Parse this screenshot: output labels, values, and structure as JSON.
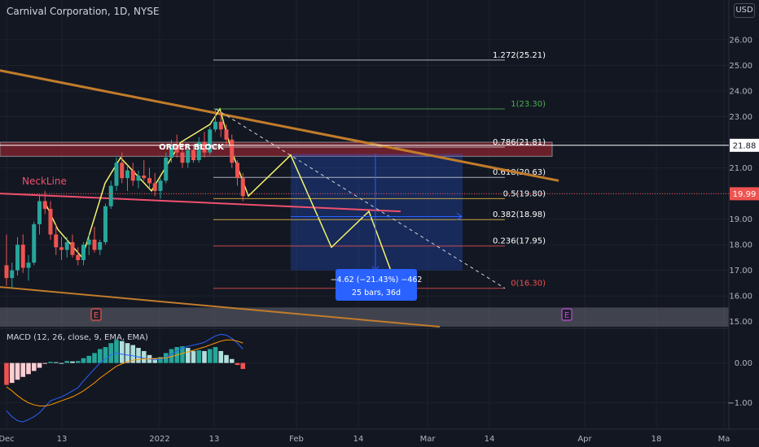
{
  "title": "Carnival Corporation, 1D, NYSE",
  "currency_button": "USD",
  "macd_title": "MACD (12, 26, close, 9, EMA, EMA)",
  "labels": {
    "neckline": "NeckLine",
    "order_block": "ORDER BLOCK",
    "earnings": "E",
    "measure_line1": "−4.62 (−21.43%) −462",
    "measure_line2": "25 bars, 36d"
  },
  "colors": {
    "background": "#131722",
    "up": "#26a69a",
    "down": "#ef5350",
    "trend": "#c27c2a",
    "pattern": "#f3f36b",
    "neckline": "#f0506e",
    "measure": "#2962ff"
  },
  "chart_data": [
    {
      "type": "candlestick",
      "title": "Carnival Corporation, 1D, NYSE",
      "x_ticks": [
        "Dec",
        "13",
        "2022",
        "13",
        "Feb",
        "14",
        "Mar",
        "14",
        "Apr",
        "18",
        "Ma"
      ],
      "y_ticks": [
        "26.00",
        "25.00",
        "24.00",
        "23.00",
        "22.00",
        "21.00",
        "20.00",
        "19.00",
        "18.00",
        "17.00",
        "16.00",
        "15.00"
      ],
      "ylim": [
        14.8,
        26.6
      ],
      "price_labels": [
        {
          "value": 21.88,
          "text": "21.88",
          "style": "white"
        },
        {
          "value": 19.99,
          "text": "19.99",
          "style": "red"
        }
      ],
      "candles": [
        [
          17.2,
          18.4,
          16.4,
          16.7
        ],
        [
          16.7,
          17.3,
          16.3,
          17.0
        ],
        [
          17.0,
          18.3,
          16.8,
          18.0
        ],
        [
          18.0,
          18.4,
          16.9,
          17.1
        ],
        [
          17.1,
          17.6,
          16.6,
          17.3
        ],
        [
          17.3,
          18.9,
          17.2,
          18.8
        ],
        [
          18.8,
          19.9,
          18.4,
          19.7
        ],
        [
          19.7,
          20.1,
          19.2,
          19.4
        ],
        [
          19.4,
          19.7,
          18.2,
          18.4
        ],
        [
          18.4,
          18.8,
          17.6,
          17.9
        ],
        [
          17.9,
          18.3,
          17.4,
          17.8
        ],
        [
          17.8,
          18.3,
          17.5,
          18.1
        ],
        [
          18.1,
          18.4,
          17.5,
          17.6
        ],
        [
          17.6,
          17.9,
          17.2,
          17.4
        ],
        [
          17.4,
          18.1,
          17.2,
          18.0
        ],
        [
          18.0,
          18.4,
          17.6,
          18.2
        ],
        [
          18.2,
          18.7,
          17.7,
          17.8
        ],
        [
          17.8,
          18.2,
          17.6,
          18.1
        ],
        [
          18.1,
          19.6,
          18.0,
          19.5
        ],
        [
          19.5,
          20.5,
          19.4,
          20.3
        ],
        [
          20.3,
          21.4,
          20.1,
          21.2
        ],
        [
          21.2,
          21.6,
          20.4,
          20.6
        ],
        [
          20.6,
          21.1,
          20.1,
          20.9
        ],
        [
          20.9,
          21.2,
          20.3,
          20.5
        ],
        [
          20.5,
          20.9,
          20.2,
          20.7
        ],
        [
          20.7,
          21.3,
          20.5,
          20.6
        ],
        [
          20.6,
          21.0,
          20.2,
          20.4
        ],
        [
          20.4,
          20.8,
          19.9,
          20.1
        ],
        [
          20.1,
          20.6,
          19.8,
          20.5
        ],
        [
          20.5,
          21.6,
          20.4,
          21.4
        ],
        [
          21.4,
          22.1,
          21.2,
          21.9
        ],
        [
          21.9,
          22.3,
          21.4,
          21.6
        ],
        [
          21.6,
          22.0,
          21.0,
          21.2
        ],
        [
          21.2,
          21.8,
          21.0,
          21.7
        ],
        [
          21.7,
          21.9,
          21.2,
          21.3
        ],
        [
          21.3,
          22.2,
          21.2,
          22.0
        ],
        [
          22.0,
          22.4,
          21.4,
          21.6
        ],
        [
          21.6,
          22.6,
          21.5,
          22.5
        ],
        [
          22.5,
          23.3,
          22.4,
          22.8
        ],
        [
          22.8,
          23.2,
          22.2,
          22.5
        ],
        [
          22.5,
          22.7,
          21.9,
          22.1
        ],
        [
          22.1,
          22.3,
          21.0,
          21.2
        ],
        [
          21.2,
          21.3,
          20.3,
          20.6
        ],
        [
          20.6,
          20.8,
          19.7,
          19.9
        ]
      ],
      "fibonacci": [
        {
          "level": "1.272",
          "price": 25.21,
          "label": "1.272(25.21)"
        },
        {
          "level": "1",
          "price": 23.3,
          "label": "1(23.30)"
        },
        {
          "level": "0.786",
          "price": 21.81,
          "label": "0.786(21.81)"
        },
        {
          "level": "0.618",
          "price": 20.63,
          "label": "0.618(20.63)"
        },
        {
          "level": "0.5",
          "price": 19.8,
          "label": "0.5(19.80)"
        },
        {
          "level": "0.382",
          "price": 18.98,
          "label": "0.382(18.98)"
        },
        {
          "level": "0.236",
          "price": 17.95,
          "label": "0.236(17.95)"
        },
        {
          "level": "0",
          "price": 16.3,
          "label": "0(16.30)"
        }
      ],
      "projection": {
        "change": -4.62,
        "change_pct": -21.43,
        "ticks": -462,
        "bars": 25,
        "days": 36
      }
    },
    {
      "type": "bar",
      "title": "MACD (12, 26, close, 9, EMA, EMA)",
      "y_ticks": [
        "0.00",
        "−1.00"
      ],
      "ylim": [
        -1.6,
        0.85
      ],
      "histogram": [
        -0.55,
        -0.5,
        -0.42,
        -0.35,
        -0.28,
        -0.2,
        -0.12,
        -0.02,
        0.03,
        0.02,
        0.0,
        0.05,
        0.04,
        0.05,
        0.12,
        0.18,
        0.25,
        0.35,
        0.4,
        0.5,
        0.58,
        0.55,
        0.5,
        0.45,
        0.38,
        0.3,
        0.2,
        0.12,
        0.15,
        0.25,
        0.35,
        0.4,
        0.42,
        0.38,
        0.3,
        0.32,
        0.3,
        0.35,
        0.4,
        0.3,
        0.2,
        0.1,
        -0.05,
        -0.15
      ],
      "macd": [
        -1.2,
        -1.35,
        -1.45,
        -1.48,
        -1.42,
        -1.35,
        -1.25,
        -1.1,
        -0.95,
        -0.9,
        -0.85,
        -0.78,
        -0.7,
        -0.62,
        -0.45,
        -0.3,
        -0.15,
        0.0,
        0.1,
        0.2,
        0.25,
        0.22,
        0.2,
        0.18,
        0.15,
        0.12,
        0.1,
        0.08,
        0.1,
        0.15,
        0.22,
        0.3,
        0.38,
        0.42,
        0.45,
        0.48,
        0.52,
        0.6,
        0.68,
        0.72,
        0.7,
        0.62,
        0.5,
        0.35
      ],
      "signal": [
        -0.6,
        -0.7,
        -0.82,
        -0.92,
        -1.0,
        -1.05,
        -1.08,
        -1.08,
        -1.05,
        -1.0,
        -0.95,
        -0.9,
        -0.85,
        -0.78,
        -0.7,
        -0.6,
        -0.5,
        -0.38,
        -0.28,
        -0.18,
        -0.08,
        -0.02,
        0.03,
        0.07,
        0.09,
        0.1,
        0.11,
        0.11,
        0.12,
        0.13,
        0.16,
        0.2,
        0.24,
        0.28,
        0.32,
        0.36,
        0.4,
        0.45,
        0.5,
        0.55,
        0.58,
        0.58,
        0.55,
        0.5
      ]
    }
  ]
}
